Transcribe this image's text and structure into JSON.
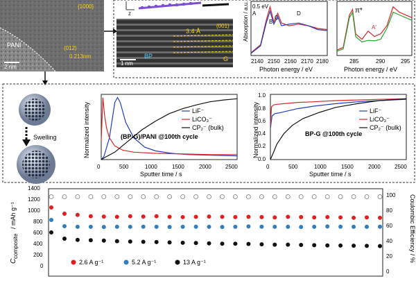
{
  "top": {
    "tem_left": {
      "labels": [
        "PANI",
        "2 nm",
        "{1000}",
        "(012)",
        "0.213nm"
      ],
      "scale_label": "2 nm"
    },
    "tem_mid": {
      "labels": [
        "3.4 Å",
        "(001)",
        "G",
        "BP",
        "1 nm"
      ],
      "z_label": "z"
    },
    "xas_p": {
      "xlabel": "Photon energy / eV",
      "ylabel": "Absorption / a.u.",
      "xticks": [
        "2140",
        "2150",
        "2160",
        "2170",
        "2180"
      ],
      "annotations": [
        "0.5 eV",
        "A",
        "B",
        "C",
        "D"
      ]
    },
    "xas_c": {
      "xlabel": "Photon energy / eV",
      "xticks": [
        "285",
        "290",
        "295"
      ],
      "annotations": [
        "π*",
        "A'"
      ]
    }
  },
  "middle": {
    "swelling_label": "Swelling",
    "chart_left": {
      "title": "(BP-G)/PANI @100th cycle",
      "xlabel": "Sputter time / s",
      "ylabel": "Normalized intensity",
      "legend": [
        "LiF⁻",
        "LiCO₃⁻",
        "CP₂⁻ (bulk)"
      ],
      "xticks": [
        "0",
        "500",
        "1000",
        "1500",
        "2000",
        "2500"
      ],
      "yticks": [
        "0.0",
        "0.2",
        "0.4",
        "0.6",
        "0.8",
        "1.0"
      ]
    },
    "chart_right": {
      "title": "BP-G @100th cycle",
      "xlabel": "Sputter time / s",
      "ylabel": "Normalized intensity",
      "legend": [
        "LiF⁻",
        "LiCO₃⁻",
        "CP₂⁻ (bulk)"
      ],
      "xticks": [
        "0",
        "500",
        "1000",
        "1500",
        "2000",
        "2500"
      ],
      "yticks": [
        "0.0",
        "0.2",
        "0.4",
        "0.6",
        "0.8",
        "1.0"
      ]
    }
  },
  "bottom": {
    "ylabel_left": "C",
    "ylabel_left_sub": "composite",
    "ylabel_left_unit": "/ mAh g⁻¹",
    "ylabel_right": "Coulombic Efficiency / %",
    "yticks_left": [
      "0",
      "200",
      "400",
      "600",
      "800",
      "1000",
      "1200",
      "1400"
    ],
    "yticks_right": [
      "0",
      "20",
      "40",
      "60",
      "80",
      "100"
    ],
    "legend": [
      "2.6 A g⁻¹",
      "5.2 A g⁻¹",
      "13 A g⁻¹"
    ]
  },
  "chart_data": [
    {
      "type": "line",
      "title": "",
      "xlabel": "Photon energy / eV",
      "ylabel": "Absorption / a.u.",
      "xlim": [
        2140,
        2180
      ],
      "series": [
        {
          "color": "#d62728",
          "x": [
            2140,
            2145,
            2148,
            2150,
            2152,
            2154,
            2156,
            2160,
            2165,
            2170,
            2175,
            2180
          ],
          "y": [
            0.05,
            0.2,
            0.65,
            0.9,
            0.62,
            0.78,
            0.6,
            0.55,
            0.58,
            0.55,
            0.5,
            0.48
          ]
        },
        {
          "color": "#1f3fbf",
          "x": [
            2140,
            2145,
            2148,
            2150,
            2152,
            2154,
            2156,
            2160,
            2165,
            2170,
            2175,
            2180
          ],
          "y": [
            0.04,
            0.18,
            0.6,
            0.82,
            0.58,
            0.72,
            0.55,
            0.58,
            0.6,
            0.55,
            0.48,
            0.46
          ]
        }
      ]
    },
    {
      "type": "line",
      "title": "",
      "xlabel": "Photon energy / eV",
      "xlim": [
        283,
        295
      ],
      "series": [
        {
          "color": "#d62728",
          "x": [
            283,
            284,
            285,
            285.5,
            286,
            287,
            288,
            289,
            290,
            291,
            292,
            293,
            295
          ],
          "y": [
            0.1,
            0.15,
            0.75,
            0.85,
            0.4,
            0.3,
            0.45,
            0.35,
            0.4,
            0.55,
            0.9,
            0.8,
            0.7
          ]
        },
        {
          "color": "#2ca02c",
          "x": [
            283,
            284,
            285,
            285.5,
            286,
            287,
            288,
            289,
            290,
            291,
            292,
            293,
            295
          ],
          "y": [
            0.08,
            0.12,
            0.7,
            0.8,
            0.35,
            0.25,
            0.28,
            0.27,
            0.3,
            0.5,
            0.8,
            0.75,
            0.65
          ]
        }
      ]
    },
    {
      "type": "line",
      "title": "(BP-G)/PANI @100th cycle",
      "xlabel": "Sputter time / s",
      "ylabel": "Normalized intensity",
      "xlim": [
        0,
        2500
      ],
      "ylim": [
        0,
        1.05
      ],
      "series": [
        {
          "name": "LiF⁻",
          "color": "#1f3fbf",
          "x": [
            0,
            50,
            150,
            250,
            300,
            350,
            450,
            600,
            800,
            1000,
            1300,
            1600,
            2000,
            2500
          ],
          "y": [
            0.0,
            0.05,
            0.35,
            0.92,
            1.0,
            0.92,
            0.6,
            0.35,
            0.2,
            0.14,
            0.1,
            0.08,
            0.07,
            0.06
          ]
        },
        {
          "name": "LiCO₃⁻",
          "color": "#d62728",
          "x": [
            0,
            30,
            60,
            100,
            150,
            250,
            400,
            600,
            1000,
            1500,
            2000,
            2500
          ],
          "y": [
            0.3,
            1.0,
            0.72,
            0.5,
            0.35,
            0.22,
            0.15,
            0.12,
            0.1,
            0.09,
            0.08,
            0.08
          ]
        },
        {
          "name": "CP₂⁻ (bulk)",
          "color": "#111111",
          "x": [
            0,
            100,
            250,
            500,
            750,
            1000,
            1250,
            1500,
            1750,
            2000,
            2250,
            2500
          ],
          "y": [
            0.0,
            0.05,
            0.12,
            0.3,
            0.48,
            0.62,
            0.74,
            0.82,
            0.88,
            0.93,
            0.96,
            0.98
          ]
        }
      ]
    },
    {
      "type": "line",
      "title": "BP-G @100th cycle",
      "xlabel": "Sputter time / s",
      "ylabel": "Normalized intensity",
      "xlim": [
        0,
        2500
      ],
      "ylim": [
        0,
        1.05
      ],
      "series": [
        {
          "name": "LiF⁻",
          "color": "#1f3fbf",
          "x": [
            0,
            30,
            80,
            150,
            300,
            500,
            800,
            1200,
            1600,
            2000,
            2500
          ],
          "y": [
            0.5,
            0.7,
            0.74,
            0.75,
            0.78,
            0.82,
            0.86,
            0.9,
            0.93,
            0.95,
            0.97
          ]
        },
        {
          "name": "LiCO₃⁻",
          "color": "#d62728",
          "x": [
            0,
            20,
            60,
            120,
            250,
            500,
            800,
            1200,
            1600,
            2000,
            2500
          ],
          "y": [
            0.55,
            0.85,
            0.88,
            0.89,
            0.9,
            0.92,
            0.93,
            0.95,
            0.96,
            0.97,
            0.98
          ]
        },
        {
          "name": "CP₂⁻ (bulk)",
          "color": "#111111",
          "x": [
            0,
            50,
            120,
            250,
            400,
            600,
            900,
            1200,
            1600,
            2000,
            2500
          ],
          "y": [
            0.0,
            0.1,
            0.25,
            0.42,
            0.55,
            0.66,
            0.76,
            0.84,
            0.9,
            0.95,
            0.98
          ]
        }
      ]
    },
    {
      "type": "scatter",
      "title": "",
      "ylabel": "C composite / mAh g⁻¹",
      "y2label": "Coulombic Efficiency / %",
      "ylim": [
        0,
        1400
      ],
      "y2lim": [
        0,
        110
      ],
      "x": [
        0,
        20,
        40,
        60,
        80,
        100,
        120,
        140,
        160,
        180,
        200,
        220,
        240,
        260,
        280,
        300,
        320,
        340,
        360,
        380,
        400,
        420,
        440,
        460,
        480,
        500
      ],
      "series": [
        {
          "name": "2.6 A g⁻¹",
          "color": "#e02020",
          "values": [
            1100,
            1000,
            980,
            960,
            955,
            950,
            960,
            955,
            960,
            950,
            945,
            950,
            955,
            950,
            945,
            950,
            945,
            940,
            950,
            945,
            940,
            945,
            940,
            935,
            940,
            935
          ]
        },
        {
          "name": "5.2 A g⁻¹",
          "color": "#2f7fbf",
          "values": [
            900,
            800,
            790,
            790,
            788,
            790,
            790,
            792,
            790,
            788,
            790,
            792,
            790,
            788,
            790,
            795,
            792,
            790,
            790,
            788,
            790,
            795,
            792,
            790,
            790,
            792
          ]
        },
        {
          "name": "13 A g⁻¹",
          "color": "#111111",
          "values": [
            700,
            600,
            580,
            575,
            570,
            560,
            555,
            550,
            545,
            540,
            535,
            530,
            525,
            520,
            520,
            515,
            510,
            505,
            505,
            500,
            495,
            492,
            490,
            488,
            485,
            482
          ]
        },
        {
          "name": "CE",
          "color": "#777777",
          "y2": true,
          "values": [
            100,
            100,
            100,
            100,
            100,
            100,
            100,
            100,
            100,
            100,
            100,
            100,
            100,
            100,
            100,
            100,
            100,
            100,
            100,
            100,
            100,
            100,
            100,
            100,
            100,
            100
          ]
        }
      ]
    }
  ]
}
